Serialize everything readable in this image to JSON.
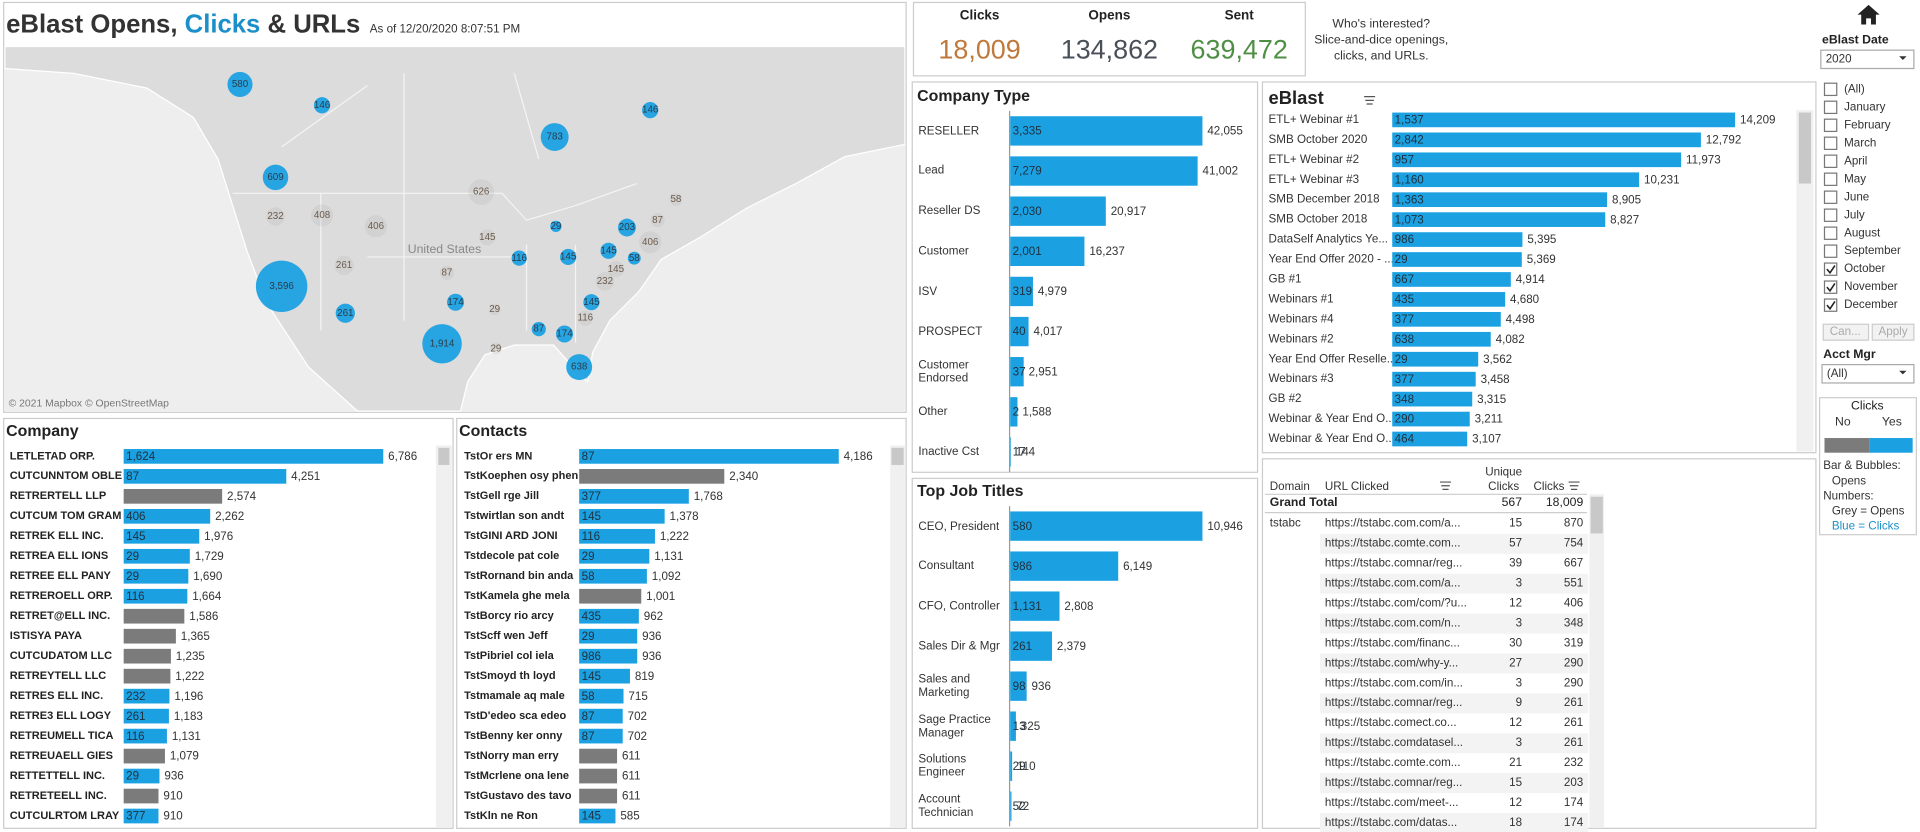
{
  "header": {
    "title_start": "eBlast Opens,",
    "title_clicks": "Clicks",
    "title_end": "& URLs",
    "as_of": "As of 12/20/2020 8:07:51 PM"
  },
  "kpis": [
    {
      "label": "Clicks",
      "value": "18,009",
      "color": "#c0793b"
    },
    {
      "label": "Opens",
      "value": "134,862",
      "color": "#4a5059"
    },
    {
      "label": "Sent",
      "value": "639,472",
      "color": "#4f8f45"
    }
  ],
  "info": [
    "Who's interested?",
    "Slice-and-dice openings,",
    "clicks, and URLs."
  ],
  "map": {
    "label": "United States",
    "credit": "© 2021 Mapbox  © OpenStreetMap",
    "bubbles": [
      {
        "value": 580,
        "label": "580",
        "color": "#1ba1e2"
      },
      {
        "value": 146,
        "label": "146",
        "color": "#1ba1e2"
      },
      {
        "value": 783,
        "label": "783",
        "color": "#1ba1e2"
      },
      {
        "value": 146,
        "label": "146",
        "color": "#1ba1e2"
      },
      {
        "value": 609,
        "label": "609",
        "color": "#1ba1e2"
      },
      {
        "value": 232,
        "label": "232",
        "color": "#8a8a8a"
      },
      {
        "value": 408,
        "label": "408",
        "color": "#8a8a8a"
      },
      {
        "value": 406,
        "label": "406",
        "color": "#8a8a8a"
      },
      {
        "value": 626,
        "label": "626",
        "color": "#8a8a8a"
      },
      {
        "value": 58,
        "label": "58",
        "color": "#8a8a8a"
      },
      {
        "value": 203,
        "label": "203",
        "color": "#1ba1e2"
      },
      {
        "value": 87,
        "label": "87",
        "color": "#8a8a8a"
      },
      {
        "value": 406,
        "label": "406",
        "color": "#8a8a8a"
      },
      {
        "value": 3596,
        "label": "3,596",
        "color": "#1ba1e2"
      },
      {
        "value": 261,
        "label": "261",
        "color": "#8a8a8a"
      },
      {
        "value": 145,
        "label": "145",
        "color": "#8a8a8a"
      },
      {
        "value": 29,
        "label": "29",
        "color": "#1ba1e2"
      },
      {
        "value": 116,
        "label": "116",
        "color": "#1ba1e2"
      },
      {
        "value": 145,
        "label": "145",
        "color": "#1ba1e2"
      },
      {
        "value": 145,
        "label": "145",
        "color": "#1ba1e2"
      },
      {
        "value": 58,
        "label": "58",
        "color": "#1ba1e2"
      },
      {
        "value": 145,
        "label": "145",
        "color": "#8a8a8a"
      },
      {
        "value": 232,
        "label": "232",
        "color": "#8a8a8a"
      },
      {
        "value": 87,
        "label": "87",
        "color": "#8a8a8a"
      },
      {
        "value": 174,
        "label": "174",
        "color": "#1ba1e2"
      },
      {
        "value": 29,
        "label": "29",
        "color": "#8a8a8a"
      },
      {
        "value": 145,
        "label": "145",
        "color": "#1ba1e2"
      },
      {
        "value": 116,
        "label": "116",
        "color": "#8a8a8a"
      },
      {
        "value": 261,
        "label": "261",
        "color": "#1ba1e2"
      },
      {
        "value": 1914,
        "label": "1,914",
        "color": "#1ba1e2"
      },
      {
        "value": 29,
        "label": "29",
        "color": "#8a8a8a"
      },
      {
        "value": 87,
        "label": "87",
        "color": "#1ba1e2"
      },
      {
        "value": 174,
        "label": "174",
        "color": "#1ba1e2"
      },
      {
        "value": 638,
        "label": "638",
        "color": "#1ba1e2"
      }
    ]
  },
  "company_type": {
    "title": "Company Type",
    "rows": [
      {
        "name": "RESELLER",
        "clicks": "3,335",
        "opens": 42055,
        "opens_label": "42,055"
      },
      {
        "name": "Lead",
        "clicks": "7,279",
        "opens": 41002,
        "opens_label": "41,002"
      },
      {
        "name": "Reseller DS",
        "clicks": "2,030",
        "opens": 20917,
        "opens_label": "20,917"
      },
      {
        "name": "Customer",
        "clicks": "2,001",
        "opens": 16237,
        "opens_label": "16,237"
      },
      {
        "name": "ISV",
        "clicks": "319",
        "opens": 4979,
        "opens_label": "4,979"
      },
      {
        "name": "PROSPECT",
        "clicks": "40",
        "opens": 4017,
        "opens_label": "4,017"
      },
      {
        "name": "Customer Endorsed",
        "clicks": "37",
        "opens": 2951,
        "opens_label": "2,951"
      },
      {
        "name": "Other",
        "clicks": "2",
        "opens": 1588,
        "opens_label": "1,588"
      },
      {
        "name": "Inactive Cst",
        "clicks": "17",
        "opens": 144,
        "opens_label": "144"
      }
    ]
  },
  "job_titles": {
    "title": "Top Job Titles",
    "rows": [
      {
        "name": "CEO, President",
        "clicks": "580",
        "opens": 10946,
        "opens_label": "10,946"
      },
      {
        "name": "Consultant",
        "clicks": "986",
        "opens": 6149,
        "opens_label": "6,149"
      },
      {
        "name": "CFO, Controller",
        "clicks": "1,131",
        "opens": 2808,
        "opens_label": "2,808"
      },
      {
        "name": "Sales Dir & Mgr",
        "clicks": "261",
        "opens": 2379,
        "opens_label": "2,379"
      },
      {
        "name": "Sales and Marketing",
        "clicks": "98",
        "opens": 936,
        "opens_label": "936"
      },
      {
        "name": "Sage Practice Manager",
        "clicks": "13",
        "opens": 325,
        "opens_label": "325"
      },
      {
        "name": "Solutions Engineer",
        "clicks": "29",
        "opens": 110,
        "opens_label": "110"
      },
      {
        "name": "Account Technician",
        "clicks": "52",
        "opens": 72,
        "opens_label": "72"
      }
    ]
  },
  "eblast": {
    "title": "eBlast",
    "rows": [
      {
        "name": "ETL+ Webinar #1",
        "clicks": "1,537",
        "opens": 14209,
        "opens_label": "14,209"
      },
      {
        "name": "SMB October 2020",
        "clicks": "2,842",
        "opens": 12792,
        "opens_label": "12,792"
      },
      {
        "name": "ETL+ Webinar #2",
        "clicks": "957",
        "opens": 11973,
        "opens_label": "11,973"
      },
      {
        "name": "ETL+ Webinar #3",
        "clicks": "1,160",
        "opens": 10231,
        "opens_label": "10,231"
      },
      {
        "name": "SMB December 2018",
        "clicks": "1,363",
        "opens": 8905,
        "opens_label": "8,905"
      },
      {
        "name": "SMB October 2018",
        "clicks": "1,073",
        "opens": 8827,
        "opens_label": "8,827"
      },
      {
        "name": "DataSelf Analytics Ye...",
        "clicks": "986",
        "opens": 5395,
        "opens_label": "5,395"
      },
      {
        "name": "Year End Offer 2020 - ...",
        "clicks": "29",
        "opens": 5369,
        "opens_label": "5,369"
      },
      {
        "name": "GB #1",
        "clicks": "667",
        "opens": 4914,
        "opens_label": "4,914"
      },
      {
        "name": "Webinars #1",
        "clicks": "435",
        "opens": 4680,
        "opens_label": "4,680"
      },
      {
        "name": "Webinars #4",
        "clicks": "377",
        "opens": 4498,
        "opens_label": "4,498"
      },
      {
        "name": "Webinars #2",
        "clicks": "638",
        "opens": 4082,
        "opens_label": "4,082"
      },
      {
        "name": "Year End Offer Reselle...",
        "clicks": "29",
        "opens": 3562,
        "opens_label": "3,562"
      },
      {
        "name": "Webinars #3",
        "clicks": "377",
        "opens": 3458,
        "opens_label": "3,458"
      },
      {
        "name": "GB #2",
        "clicks": "348",
        "opens": 3315,
        "opens_label": "3,315"
      },
      {
        "name": "Webinar & Year End O...",
        "clicks": "290",
        "opens": 3211,
        "opens_label": "3,211"
      },
      {
        "name": "Webinar & Year End O...",
        "clicks": "464",
        "opens": 3107,
        "opens_label": "3,107"
      }
    ]
  },
  "url_table": {
    "columns": [
      "Domain",
      "URL Clicked",
      "Unique",
      "Clicks",
      "Clicks"
    ],
    "total": [
      "Grand Total",
      "567",
      "18,009"
    ],
    "domain": "tstabc",
    "rows": [
      [
        "https://tstabc.com.com/a...",
        "15",
        "870"
      ],
      [
        "https://tstabc.comte.com...",
        "57",
        "754"
      ],
      [
        "https://tstabc.comnar/reg...",
        "39",
        "667"
      ],
      [
        "https://tstabc.com.com/a...",
        "3",
        "551"
      ],
      [
        "https://tstabc.com/com/?u...",
        "12",
        "406"
      ],
      [
        "https://tstabc.com.com/n...",
        "3",
        "348"
      ],
      [
        "https://tstabc.com/financ...",
        "30",
        "319"
      ],
      [
        "https://tstabc.com/why-y...",
        "27",
        "290"
      ],
      [
        "https://tstabc.com.com/in...",
        "3",
        "290"
      ],
      [
        "https://tstabc.comnar/reg...",
        "9",
        "261"
      ],
      [
        "https://tstabc.comect.co...",
        "12",
        "261"
      ],
      [
        "https://tstabc.comdatasel...",
        "3",
        "261"
      ],
      [
        "https://tstabc.comte.com...",
        "21",
        "232"
      ],
      [
        "https://tstabc.comnar/reg...",
        "15",
        "203"
      ],
      [
        "https://tstabc.com/meet-...",
        "12",
        "174"
      ],
      [
        "https://tstabc.com/datas...",
        "18",
        "174"
      ]
    ]
  },
  "company": {
    "title": "Company",
    "rows": [
      {
        "name": "LETLETAD ORP.",
        "clicks": "1,624",
        "opens": 6786,
        "opens_label": "6,786"
      },
      {
        "name": "CUTCUNNTOM OBLE",
        "clicks": "87",
        "opens": 4251,
        "opens_label": "4,251"
      },
      {
        "name": "RETRERTELL LLP",
        "opens": 2574,
        "opens_label": "2,574"
      },
      {
        "name": "CUTCUM TOM GRAM",
        "clicks": "406",
        "opens": 2262,
        "opens_label": "2,262"
      },
      {
        "name": "RETREK ELL INC.",
        "clicks": "145",
        "opens": 1976,
        "opens_label": "1,976"
      },
      {
        "name": "RETREA ELL IONS",
        "clicks": "29",
        "opens": 1729,
        "opens_label": "1,729"
      },
      {
        "name": "RETREE ELL PANY",
        "clicks": "29",
        "opens": 1690,
        "opens_label": "1,690"
      },
      {
        "name": "RETREROELL ORP.",
        "clicks": "116",
        "opens": 1664,
        "opens_label": "1,664"
      },
      {
        "name": "RETRET@ELL INC.",
        "opens": 1586,
        "opens_label": "1,586"
      },
      {
        "name": "ISTISYA PAYA",
        "opens": 1365,
        "opens_label": "1,365"
      },
      {
        "name": "CUTCUDATOM LLC",
        "opens": 1235,
        "opens_label": "1,235"
      },
      {
        "name": "RETREYTELL LLC",
        "opens": 1222,
        "opens_label": "1,222"
      },
      {
        "name": "RETRES ELL INC.",
        "clicks": "232",
        "opens": 1196,
        "opens_label": "1,196"
      },
      {
        "name": "RETRE3 ELL LOGY",
        "clicks": "261",
        "opens": 1183,
        "opens_label": "1,183"
      },
      {
        "name": "RETREUMELL TICA",
        "clicks": "116",
        "opens": 1131,
        "opens_label": "1,131"
      },
      {
        "name": "RETREUAELL GIES",
        "opens": 1079,
        "opens_label": "1,079"
      },
      {
        "name": "RETTETTELL INC.",
        "clicks": "29",
        "opens": 936,
        "opens_label": "936"
      },
      {
        "name": "RETRETEELL INC.",
        "opens": 910,
        "opens_label": "910"
      },
      {
        "name": "CUTCULRTOM LRAY",
        "clicks": "377",
        "opens": 910,
        "opens_label": "910"
      }
    ]
  },
  "contacts": {
    "title": "Contacts",
    "rows": [
      {
        "name": "TstOr ers MN",
        "clicks": "87",
        "opens": 4186,
        "opens_label": "4,186"
      },
      {
        "name": "TstKoephen osy phen",
        "opens": 2340,
        "opens_label": "2,340"
      },
      {
        "name": "TstGell rge Jill",
        "clicks": "377",
        "opens": 1768,
        "opens_label": "1,768"
      },
      {
        "name": "Tstwirtlan son andt",
        "clicks": "145",
        "opens": 1378,
        "opens_label": "1,378"
      },
      {
        "name": "TstGINI ARD JONI",
        "clicks": "116",
        "opens": 1222,
        "opens_label": "1,222"
      },
      {
        "name": "Tstdecole pat cole",
        "clicks": "29",
        "opens": 1131,
        "opens_label": "1,131"
      },
      {
        "name": "TstRornand bin anda",
        "clicks": "58",
        "opens": 1092,
        "opens_label": "1,092"
      },
      {
        "name": "TstKamela ghe mela",
        "opens": 1001,
        "opens_label": "1,001"
      },
      {
        "name": "TstBorcy rio arcy",
        "clicks": "435",
        "opens": 962,
        "opens_label": "962"
      },
      {
        "name": "TstScff wen Jeff",
        "clicks": "29",
        "opens": 936,
        "opens_label": "936"
      },
      {
        "name": "TstPibriel col iela",
        "clicks": "986",
        "opens": 936,
        "opens_label": "936"
      },
      {
        "name": "TstSmoyd th loyd",
        "clicks": "145",
        "opens": 819,
        "opens_label": "819"
      },
      {
        "name": "Tstmamale aq male",
        "clicks": "58",
        "opens": 715,
        "opens_label": "715"
      },
      {
        "name": "TstD'edeo sca edeo",
        "clicks": "87",
        "opens": 702,
        "opens_label": "702"
      },
      {
        "name": "TstBenny ker onny",
        "clicks": "87",
        "opens": 702,
        "opens_label": "702"
      },
      {
        "name": "TstNorry man erry",
        "opens": 611,
        "opens_label": "611"
      },
      {
        "name": "TstMcrlene ona lene",
        "opens": 611,
        "opens_label": "611"
      },
      {
        "name": "TstGustavo des tavo",
        "opens": 611,
        "opens_label": "611"
      },
      {
        "name": "TstKln ne Ron",
        "clicks": "145",
        "opens": 585,
        "opens_label": "585"
      }
    ]
  },
  "filters": {
    "date_label": "eBlast Date",
    "date_value": "2020",
    "months": [
      {
        "label": "(All)",
        "checked": false
      },
      {
        "label": "January",
        "checked": false
      },
      {
        "label": "February",
        "checked": false
      },
      {
        "label": "March",
        "checked": false
      },
      {
        "label": "April",
        "checked": false
      },
      {
        "label": "May",
        "checked": false
      },
      {
        "label": "June",
        "checked": false
      },
      {
        "label": "July",
        "checked": false
      },
      {
        "label": "August",
        "checked": false
      },
      {
        "label": "September",
        "checked": false
      },
      {
        "label": "October",
        "checked": true
      },
      {
        "label": "November",
        "checked": true
      },
      {
        "label": "December",
        "checked": true
      }
    ],
    "cancel": "Can...",
    "apply": "Apply",
    "mgr_label": "Acct Mgr",
    "mgr_value": "(All)"
  },
  "legend": {
    "title": "Clicks",
    "no": "No",
    "yes": "Yes",
    "no_color": "#7b7b7b",
    "yes_color": "#1ba1e2",
    "notes": [
      "Bar & Bubbles:",
      "Opens",
      "Numbers:",
      "Grey = Opens",
      "Blue = Clicks"
    ]
  }
}
